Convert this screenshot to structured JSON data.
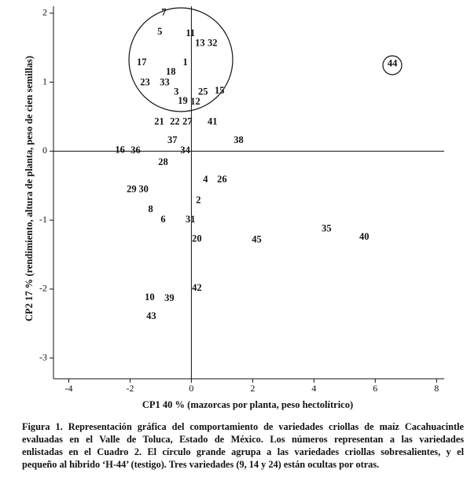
{
  "chart_data": {
    "type": "scatter",
    "x_label": "CP1 40 % (mazorcas por planta, peso hectolítrico)",
    "y_label": "CP2 17 % (rendimiento, altura de planta, peso de cien semillas)",
    "xlim": [
      -4.5,
      8.25
    ],
    "ylim": [
      -3.3,
      2.1
    ],
    "xticks": [
      -4,
      -2,
      0,
      2,
      4,
      6,
      8
    ],
    "yticks": [
      -3,
      -2,
      -1,
      0,
      1,
      2
    ],
    "points": [
      {
        "label": "7",
        "x": -0.9,
        "y": 2.0
      },
      {
        "label": "5",
        "x": -1.03,
        "y": 1.72
      },
      {
        "label": "11",
        "x": -0.03,
        "y": 1.7
      },
      {
        "label": "13",
        "x": 0.28,
        "y": 1.56
      },
      {
        "label": "32",
        "x": 0.69,
        "y": 1.56
      },
      {
        "label": "17",
        "x": -1.62,
        "y": 1.28
      },
      {
        "label": "1",
        "x": -0.2,
        "y": 1.28
      },
      {
        "label": "18",
        "x": -0.67,
        "y": 1.14
      },
      {
        "label": "23",
        "x": -1.51,
        "y": 0.99
      },
      {
        "label": "33",
        "x": -0.87,
        "y": 0.99
      },
      {
        "label": "3",
        "x": -0.49,
        "y": 0.85
      },
      {
        "label": "25",
        "x": 0.38,
        "y": 0.85
      },
      {
        "label": "15",
        "x": 0.92,
        "y": 0.87
      },
      {
        "label": "19",
        "x": -0.28,
        "y": 0.72
      },
      {
        "label": "12",
        "x": 0.13,
        "y": 0.71
      },
      {
        "label": "21",
        "x": -1.05,
        "y": 0.42
      },
      {
        "label": "22",
        "x": -0.54,
        "y": 0.42
      },
      {
        "label": "27",
        "x": -0.13,
        "y": 0.42
      },
      {
        "label": "41",
        "x": 0.69,
        "y": 0.42
      },
      {
        "label": "37",
        "x": -0.62,
        "y": 0.15
      },
      {
        "label": "38",
        "x": 1.54,
        "y": 0.15
      },
      {
        "label": "16",
        "x": -2.33,
        "y": 0.01
      },
      {
        "label": "36",
        "x": -1.82,
        "y": 0.0
      },
      {
        "label": "34",
        "x": -0.2,
        "y": 0.0
      },
      {
        "label": "28",
        "x": -0.92,
        "y": -0.17
      },
      {
        "label": "4",
        "x": 0.46,
        "y": -0.42
      },
      {
        "label": "26",
        "x": 1.0,
        "y": -0.42
      },
      {
        "label": "29",
        "x": -1.95,
        "y": -0.56
      },
      {
        "label": "30",
        "x": -1.56,
        "y": -0.56
      },
      {
        "label": "2",
        "x": 0.23,
        "y": -0.72
      },
      {
        "label": "8",
        "x": -1.33,
        "y": -0.85
      },
      {
        "label": "6",
        "x": -0.92,
        "y": -1.0
      },
      {
        "label": "31",
        "x": -0.03,
        "y": -1.0
      },
      {
        "label": "20",
        "x": 0.18,
        "y": -1.28
      },
      {
        "label": "45",
        "x": 2.13,
        "y": -1.29
      },
      {
        "label": "35",
        "x": 4.41,
        "y": -1.13
      },
      {
        "label": "40",
        "x": 5.64,
        "y": -1.25
      },
      {
        "label": "42",
        "x": 0.18,
        "y": -1.99
      },
      {
        "label": "10",
        "x": -1.36,
        "y": -2.13
      },
      {
        "label": "39",
        "x": -0.72,
        "y": -2.14
      },
      {
        "label": "43",
        "x": -1.31,
        "y": -2.4
      },
      {
        "label": "44",
        "x": 6.56,
        "y": 1.26
      }
    ],
    "caption": [
      "Figura 1. Representación gráfica del comportamiento de variedades criollas de maíz Cacahuacintle",
      "evaluadas en el Valle de Toluca, Estado de México. Los números representan a las variedades",
      "enlistadas en el Cuadro 2. El círculo grande agrupa a las variedades criollas sobresalientes, y el",
      "pequeño al híbrido ‘H-44’ (testigo). Tres variedades (9, 14 y 24) están ocultas por otras."
    ]
  }
}
